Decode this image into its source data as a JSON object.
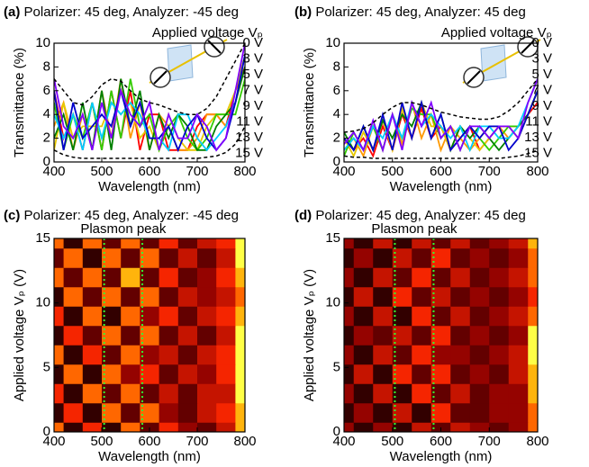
{
  "chart_data": [
    {
      "type": "line",
      "label": "(a)",
      "title": "Polarizer: 45 deg, Analyzer: -45 deg",
      "xlabel": "Wavelength (nm)",
      "ylabel": "Transmittance (%)",
      "legend_title": "Applied voltage Vₚ",
      "x": [
        400,
        420,
        440,
        460,
        480,
        500,
        520,
        540,
        560,
        580,
        600,
        620,
        640,
        660,
        680,
        700,
        720,
        740,
        760,
        780,
        800
      ],
      "xlim": [
        400,
        800
      ],
      "xticks": [
        400,
        500,
        600,
        700,
        800
      ],
      "ylim": [
        0,
        10
      ],
      "yticks": [
        0,
        2,
        4,
        6,
        8,
        10
      ],
      "series": [
        {
          "name": "0 V",
          "color": "#ff0000",
          "values": [
            6,
            2,
            4,
            1,
            5,
            1,
            6,
            2,
            6,
            1,
            4,
            4,
            1,
            1,
            1,
            3,
            4,
            4,
            3,
            6,
            8
          ]
        },
        {
          "name": "3 V",
          "color": "#ff9900",
          "values": [
            3,
            5,
            1,
            4,
            1,
            6,
            2,
            7,
            2,
            5,
            1,
            4,
            3,
            1,
            1,
            2,
            4,
            4,
            3,
            5,
            8
          ]
        },
        {
          "name": "5 V",
          "color": "#e6c800",
          "values": [
            1,
            5,
            2,
            3,
            3,
            3,
            5,
            4,
            5,
            2,
            3,
            1,
            4,
            2,
            1,
            1,
            3,
            4,
            4,
            6,
            9
          ]
        },
        {
          "name": "7 V",
          "color": "#33cc00",
          "values": [
            5,
            1,
            4,
            2,
            5,
            1,
            6,
            2,
            7,
            3,
            4,
            1,
            3,
            4,
            2,
            1,
            2,
            4,
            4,
            4,
            7
          ]
        },
        {
          "name": "9 V",
          "color": "#008000",
          "values": [
            2,
            4,
            1,
            5,
            1,
            6,
            1,
            7,
            3,
            6,
            1,
            4,
            2,
            4,
            3,
            1,
            1,
            3,
            4,
            5,
            8
          ]
        },
        {
          "name": "11 V",
          "color": "#00ccff",
          "values": [
            4,
            2,
            4,
            1,
            5,
            2,
            5,
            4,
            5,
            4,
            2,
            2,
            1,
            4,
            4,
            2,
            1,
            2,
            3,
            5,
            9
          ]
        },
        {
          "name": "13 V",
          "color": "#0000cc",
          "values": [
            6,
            1,
            5,
            2,
            3,
            4,
            3,
            6,
            3,
            5,
            2,
            2,
            3,
            1,
            3,
            4,
            2,
            1,
            2,
            5,
            9
          ]
        },
        {
          "name": "15 V",
          "color": "#8000ff",
          "values": [
            7,
            3,
            2,
            4,
            1,
            5,
            2,
            6,
            4,
            3,
            5,
            1,
            4,
            2,
            2,
            4,
            3,
            1,
            2,
            6,
            10
          ]
        }
      ],
      "upper_envelope": [
        7,
        6,
        5,
        4.8,
        5.5,
        6.5,
        7,
        6.8,
        6,
        5.3,
        5,
        4.8,
        4.5,
        4.2,
        4,
        4,
        4.5,
        5.5,
        7,
        8.5,
        10
      ],
      "lower_envelope": [
        1,
        0.6,
        0.4,
        0.3,
        0.3,
        0.3,
        0.3,
        0.3,
        0.3,
        0.3,
        0.3,
        0.3,
        0.3,
        0.3,
        0.3,
        0.3,
        0.4,
        0.5,
        0.8,
        1.5,
        3
      ]
    },
    {
      "type": "line",
      "label": "(b)",
      "title": "Polarizer: 45 deg, Analyzer: 45 deg",
      "xlabel": "Wavelength (nm)",
      "ylabel": "Transmittance (%)",
      "legend_title": "Applied voltage Vₚ",
      "x": [
        400,
        420,
        440,
        460,
        480,
        500,
        520,
        540,
        560,
        580,
        600,
        620,
        640,
        660,
        680,
        700,
        720,
        740,
        760,
        780,
        800
      ],
      "xlim": [
        400,
        800
      ],
      "xticks": [
        400,
        500,
        600,
        700,
        800
      ],
      "ylim": [
        0,
        10
      ],
      "yticks": [
        0,
        2,
        4,
        6,
        8,
        10
      ],
      "series": [
        {
          "name": "0 V",
          "color": "#ff0000",
          "values": [
            2,
            1,
            2,
            0.5,
            3,
            1,
            4,
            2,
            4.5,
            2,
            3,
            1,
            2,
            3,
            1,
            2,
            3,
            3,
            3,
            4,
            5
          ]
        },
        {
          "name": "3 V",
          "color": "#ff9900",
          "values": [
            1,
            2,
            0.5,
            3,
            1,
            4,
            1.5,
            5,
            2,
            4,
            1,
            3,
            2,
            1,
            2,
            3,
            3,
            2,
            3,
            4,
            6
          ]
        },
        {
          "name": "5 V",
          "color": "#e6c800",
          "values": [
            2,
            0.5,
            2.5,
            1,
            3.5,
            1,
            4.5,
            2,
            5,
            3,
            3,
            1,
            3,
            2,
            1,
            2,
            3,
            3,
            2,
            4,
            6
          ]
        },
        {
          "name": "7 V",
          "color": "#33cc00",
          "values": [
            0.5,
            2.5,
            1,
            3,
            1,
            4,
            2,
            4.5,
            4,
            4,
            2,
            3,
            1,
            3,
            2,
            1,
            2,
            3,
            3,
            4,
            6
          ]
        },
        {
          "name": "9 V",
          "color": "#008000",
          "values": [
            2.5,
            1,
            3,
            1,
            3.5,
            2,
            4,
            3,
            5,
            2,
            4,
            1,
            3,
            2,
            3,
            2,
            1,
            2,
            3,
            4,
            6
          ]
        },
        {
          "name": "11 V",
          "color": "#00ccff",
          "values": [
            1,
            2,
            1,
            3,
            2,
            4,
            2,
            5,
            3,
            4,
            3,
            2,
            3,
            1,
            3,
            3,
            2,
            2,
            3,
            5,
            7
          ]
        },
        {
          "name": "13 V",
          "color": "#0000cc",
          "values": [
            2,
            1,
            3,
            1,
            4,
            1,
            5,
            2,
            5,
            2,
            4,
            1,
            2,
            3,
            2,
            3,
            3,
            1,
            2,
            4,
            6
          ]
        },
        {
          "name": "15 V",
          "color": "#8000ff",
          "values": [
            1.5,
            2.5,
            1,
            3.5,
            1,
            4,
            1,
            5,
            3,
            5,
            2,
            3,
            1,
            3,
            3,
            2,
            3,
            3,
            2,
            5,
            7
          ]
        }
      ],
      "upper_envelope": [
        2.5,
        2.6,
        2.8,
        3.3,
        4,
        4.6,
        5,
        5,
        4.8,
        4.5,
        4.2,
        4,
        3.8,
        3.7,
        3.6,
        3.6,
        3.8,
        4.3,
        5,
        6,
        7
      ],
      "lower_envelope": [
        0.5,
        0.4,
        0.4,
        0.3,
        0.3,
        0.3,
        0.3,
        0.3,
        0.3,
        0.3,
        0.3,
        0.3,
        0.3,
        0.3,
        0.3,
        0.3,
        0.3,
        0.4,
        0.5,
        0.7,
        1
      ]
    },
    {
      "type": "heatmap",
      "label": "(c)",
      "title": "Polarizer: 45 deg, Analyzer: -45 deg",
      "annotation": "Plasmon peak",
      "xlabel": "Wavelength (nm)",
      "ylabel": "Applied voltage Vₚ (V)",
      "x": [
        400,
        440,
        480,
        520,
        560,
        600,
        640,
        680,
        720,
        760,
        800
      ],
      "y": [
        0,
        1.5,
        3,
        4.5,
        6,
        7.5,
        9,
        10.5,
        12,
        13.5,
        15
      ],
      "xlim": [
        400,
        800
      ],
      "xticks": [
        400,
        500,
        600,
        700,
        800
      ],
      "ylim": [
        0,
        15
      ],
      "yticks": [
        0,
        5,
        10,
        15
      ],
      "zlim": [
        0,
        8
      ],
      "markers": [
        505,
        585
      ],
      "marker_color": "#33ff33",
      "z": [
        [
          6,
          1,
          5,
          1,
          6,
          2,
          5,
          3,
          2,
          4,
          7
        ],
        [
          1,
          5,
          1,
          6,
          2,
          6,
          3,
          2,
          4,
          5,
          7
        ],
        [
          5,
          1,
          6,
          2,
          6,
          2,
          4,
          2,
          4,
          4,
          8
        ],
        [
          1,
          6,
          1,
          6,
          3,
          5,
          2,
          4,
          3,
          5,
          8
        ],
        [
          6,
          1,
          5,
          2,
          6,
          3,
          4,
          2,
          4,
          5,
          9
        ],
        [
          1,
          5,
          2,
          6,
          2,
          6,
          2,
          4,
          2,
          4,
          9
        ],
        [
          5,
          1,
          6,
          1,
          6,
          3,
          5,
          2,
          4,
          5,
          7
        ],
        [
          1,
          6,
          2,
          6,
          2,
          6,
          2,
          4,
          3,
          4,
          6
        ],
        [
          6,
          2,
          6,
          2,
          7,
          2,
          5,
          2,
          3,
          5,
          7
        ],
        [
          2,
          6,
          1,
          6,
          2,
          6,
          2,
          4,
          2,
          4,
          8
        ],
        [
          6,
          1,
          6,
          2,
          6,
          2,
          5,
          2,
          4,
          5,
          8
        ]
      ]
    },
    {
      "type": "heatmap",
      "label": "(d)",
      "title": "Polarizer: 45 deg, Analyzer: 45 deg",
      "annotation": "Plasmon peak",
      "xlabel": "Wavelength (nm)",
      "ylabel": "Applied voltage Vₚ (V)",
      "x": [
        400,
        440,
        480,
        520,
        560,
        600,
        640,
        680,
        720,
        760,
        800
      ],
      "y": [
        0,
        1.5,
        3,
        4.5,
        6,
        7.5,
        9,
        10.5,
        12,
        13.5,
        15
      ],
      "xlim": [
        400,
        800
      ],
      "xticks": [
        400,
        500,
        600,
        700,
        800
      ],
      "ylim": [
        0,
        15
      ],
      "yticks": [
        0,
        5,
        10,
        15
      ],
      "zlim": [
        0,
        8
      ],
      "markers": [
        505,
        585
      ],
      "marker_color": "#33ff33",
      "z": [
        [
          3,
          1,
          3,
          1,
          4,
          2,
          4,
          3,
          2,
          3,
          6
        ],
        [
          1,
          3,
          1,
          4,
          1,
          5,
          2,
          2,
          3,
          3,
          6
        ],
        [
          3,
          1,
          4,
          1,
          5,
          2,
          4,
          2,
          3,
          3,
          7
        ],
        [
          1,
          4,
          1,
          5,
          2,
          5,
          2,
          3,
          2,
          4,
          7
        ],
        [
          3,
          1,
          4,
          2,
          5,
          3,
          3,
          2,
          3,
          4,
          8
        ],
        [
          1,
          3,
          2,
          4,
          2,
          5,
          2,
          3,
          2,
          3,
          8
        ],
        [
          3,
          1,
          4,
          1,
          5,
          2,
          4,
          2,
          3,
          4,
          6
        ],
        [
          1,
          4,
          1,
          5,
          2,
          4,
          2,
          3,
          2,
          3,
          5
        ],
        [
          3,
          1,
          4,
          2,
          5,
          2,
          4,
          2,
          3,
          4,
          6
        ],
        [
          1,
          3,
          1,
          4,
          2,
          5,
          2,
          3,
          2,
          3,
          6
        ],
        [
          3,
          1,
          4,
          1,
          4,
          2,
          4,
          2,
          3,
          4,
          7
        ]
      ]
    }
  ]
}
